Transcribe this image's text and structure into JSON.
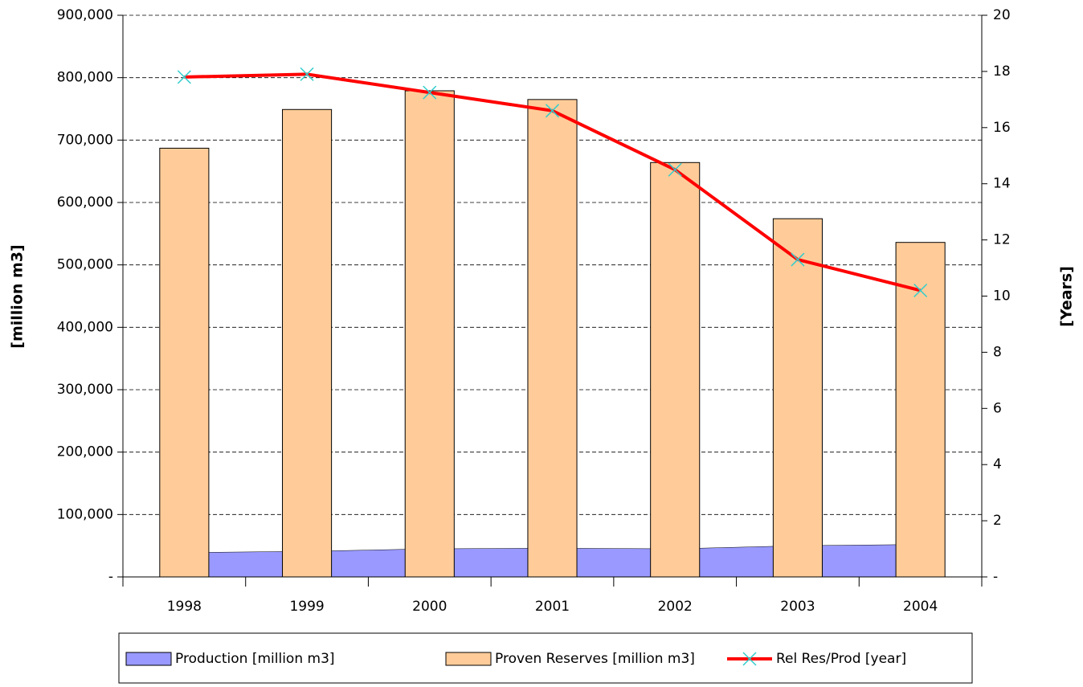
{
  "chart_data": {
    "type": "bar",
    "categories": [
      "1998",
      "1999",
      "2000",
      "2001",
      "2002",
      "2003",
      "2004"
    ],
    "series": [
      {
        "name": "Production [million m3]",
        "type": "area",
        "color": "#9999ff",
        "values": [
          39000,
          41000,
          45000,
          46000,
          45000,
          50000,
          52000
        ]
      },
      {
        "name": "Proven Reserves [million m3]",
        "type": "bar",
        "color": "#ffcc99",
        "values": [
          687000,
          749000,
          779000,
          765000,
          664000,
          574000,
          536000
        ]
      },
      {
        "name": "Rel Res/Prod [year]",
        "type": "line",
        "axis": "y2",
        "color": "#ff0000",
        "marker_color": "#33cccc",
        "values": [
          17.8,
          17.9,
          17.25,
          16.6,
          14.5,
          11.3,
          10.2
        ]
      }
    ],
    "ylabel": "[million m3]",
    "y2label": "[Years]",
    "ylim": [
      0,
      900000
    ],
    "yticks": [
      {
        "value": 0,
        "label": "-"
      },
      {
        "value": 100000,
        "label": "100,000"
      },
      {
        "value": 200000,
        "label": "200,000"
      },
      {
        "value": 300000,
        "label": "300,000"
      },
      {
        "value": 400000,
        "label": "400,000"
      },
      {
        "value": 500000,
        "label": "500,000"
      },
      {
        "value": 600000,
        "label": "600,000"
      },
      {
        "value": 700000,
        "label": "700,000"
      },
      {
        "value": 800000,
        "label": "800,000"
      },
      {
        "value": 900000,
        "label": "900,000"
      }
    ],
    "y2lim": [
      0,
      20
    ],
    "y2ticks": [
      {
        "value": 0,
        "label": "-"
      },
      2,
      4,
      6,
      8,
      10,
      12,
      14,
      16,
      18,
      20
    ],
    "grid": true,
    "legend": "bottom"
  }
}
